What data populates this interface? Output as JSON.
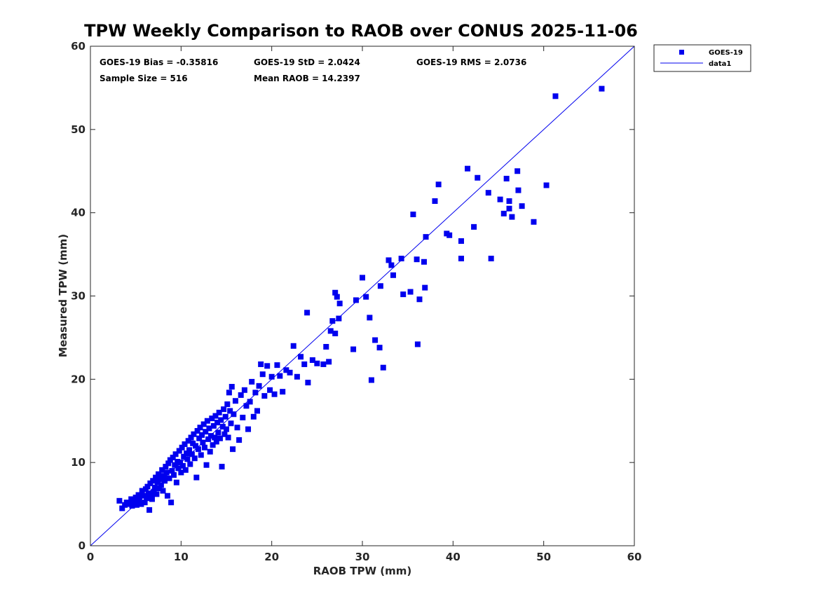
{
  "chart_data": {
    "type": "scatter",
    "title": "TPW Weekly Comparison to RAOB over CONUS 2025-11-06",
    "xlabel": "RAOB TPW (mm)",
    "ylabel": "Measured TPW (mm)",
    "xlim": [
      0,
      60
    ],
    "ylim": [
      0,
      60
    ],
    "xticks": [
      "0",
      "10",
      "20",
      "30",
      "40",
      "50",
      "60"
    ],
    "yticks": [
      "0",
      "10",
      "20",
      "30",
      "40",
      "50",
      "60"
    ],
    "grid": false,
    "legend_position": "outside-top-right",
    "annotations": {
      "bias": "GOES-19 Bias = -0.35816",
      "std": "GOES-19 StD = 2.0424",
      "rms": "GOES-19 RMS = 2.0736",
      "sample_size": "Sample Size = 516",
      "mean_raob": "Mean RAOB = 14.2397"
    },
    "series": [
      {
        "name": "GOES-19",
        "kind": "scatter",
        "marker": "square",
        "color": "#0000ee",
        "points": [
          [
            3.2,
            5.4
          ],
          [
            3.5,
            4.5
          ],
          [
            3.8,
            4.9
          ],
          [
            4.0,
            5.2
          ],
          [
            4.3,
            5.0
          ],
          [
            4.5,
            5.6
          ],
          [
            4.6,
            4.8
          ],
          [
            4.8,
            5.3
          ],
          [
            5.0,
            5.8
          ],
          [
            5.1,
            4.9
          ],
          [
            5.3,
            6.1
          ],
          [
            5.4,
            5.5
          ],
          [
            5.6,
            5.0
          ],
          [
            5.7,
            6.6
          ],
          [
            5.9,
            6.0
          ],
          [
            6.0,
            5.2
          ],
          [
            6.1,
            6.8
          ],
          [
            6.2,
            5.7
          ],
          [
            6.3,
            7.1
          ],
          [
            6.4,
            6.3
          ],
          [
            6.5,
            4.3
          ],
          [
            6.6,
            7.5
          ],
          [
            6.7,
            6.0
          ],
          [
            6.8,
            5.6
          ],
          [
            6.9,
            7.8
          ],
          [
            7.0,
            6.5
          ],
          [
            7.1,
            7.0
          ],
          [
            7.2,
            8.2
          ],
          [
            7.3,
            6.2
          ],
          [
            7.4,
            7.6
          ],
          [
            7.5,
            8.6
          ],
          [
            7.6,
            6.9
          ],
          [
            7.7,
            8.0
          ],
          [
            7.8,
            7.3
          ],
          [
            7.9,
            9.1
          ],
          [
            8.0,
            6.6
          ],
          [
            8.1,
            8.4
          ],
          [
            8.2,
            7.8
          ],
          [
            8.3,
            9.5
          ],
          [
            8.4,
            8.8
          ],
          [
            8.5,
            6.0
          ],
          [
            8.6,
            9.9
          ],
          [
            8.7,
            8.1
          ],
          [
            8.8,
            10.3
          ],
          [
            8.9,
            5.2
          ],
          [
            9.0,
            9.0
          ],
          [
            9.1,
            10.6
          ],
          [
            9.2,
            8.5
          ],
          [
            9.3,
            9.7
          ],
          [
            9.4,
            11.0
          ],
          [
            9.5,
            7.6
          ],
          [
            9.6,
            10.1
          ],
          [
            9.7,
            9.3
          ],
          [
            9.8,
            11.4
          ],
          [
            9.9,
            10.0
          ],
          [
            10.0,
            8.8
          ],
          [
            10.1,
            11.8
          ],
          [
            10.2,
            9.6
          ],
          [
            10.3,
            10.7
          ],
          [
            10.4,
            12.2
          ],
          [
            10.5,
            9.1
          ],
          [
            10.6,
            11.1
          ],
          [
            10.7,
            10.4
          ],
          [
            10.8,
            12.6
          ],
          [
            10.9,
            11.5
          ],
          [
            11.0,
            9.8
          ],
          [
            11.1,
            13.0
          ],
          [
            11.2,
            11.0
          ],
          [
            11.3,
            12.3
          ],
          [
            11.4,
            13.4
          ],
          [
            11.5,
            10.5
          ],
          [
            11.6,
            12.0
          ],
          [
            11.7,
            8.2
          ],
          [
            11.8,
            13.8
          ],
          [
            11.9,
            11.6
          ],
          [
            12.0,
            12.9
          ],
          [
            12.1,
            14.2
          ],
          [
            12.2,
            10.9
          ],
          [
            12.3,
            13.3
          ],
          [
            12.4,
            12.4
          ],
          [
            12.5,
            14.6
          ],
          [
            12.6,
            11.8
          ],
          [
            12.7,
            13.7
          ],
          [
            12.8,
            9.7
          ],
          [
            12.9,
            15.0
          ],
          [
            13.0,
            12.8
          ],
          [
            13.1,
            14.1
          ],
          [
            13.2,
            11.3
          ],
          [
            13.3,
            13.2
          ],
          [
            13.4,
            15.3
          ],
          [
            13.5,
            12.1
          ],
          [
            13.6,
            14.4
          ],
          [
            13.7,
            13.0
          ],
          [
            13.8,
            15.6
          ],
          [
            13.9,
            12.5
          ],
          [
            14.0,
            14.8
          ],
          [
            14.1,
            13.6
          ],
          [
            14.2,
            16.0
          ],
          [
            14.3,
            12.9
          ],
          [
            14.4,
            15.1
          ],
          [
            14.5,
            9.5
          ],
          [
            14.6,
            14.3
          ],
          [
            14.7,
            16.4
          ],
          [
            14.8,
            13.4
          ],
          [
            14.9,
            15.5
          ],
          [
            15.0,
            14.0
          ],
          [
            15.1,
            17.0
          ],
          [
            15.2,
            13.0
          ],
          [
            15.3,
            18.4
          ],
          [
            15.4,
            16.2
          ],
          [
            15.5,
            14.7
          ],
          [
            15.6,
            19.1
          ],
          [
            15.7,
            11.6
          ],
          [
            15.8,
            15.8
          ],
          [
            16.0,
            17.4
          ],
          [
            16.2,
            14.2
          ],
          [
            16.4,
            12.7
          ],
          [
            16.6,
            18.1
          ],
          [
            16.8,
            15.4
          ],
          [
            17.0,
            18.7
          ],
          [
            17.2,
            16.8
          ],
          [
            17.4,
            14.0
          ],
          [
            17.6,
            17.3
          ],
          [
            17.8,
            19.7
          ],
          [
            18.0,
            15.5
          ],
          [
            18.2,
            18.4
          ],
          [
            18.4,
            16.2
          ],
          [
            18.6,
            19.2
          ],
          [
            18.8,
            21.8
          ],
          [
            19.0,
            20.6
          ],
          [
            19.2,
            18.0
          ],
          [
            19.5,
            21.6
          ],
          [
            19.8,
            18.7
          ],
          [
            20.0,
            20.3
          ],
          [
            20.3,
            18.2
          ],
          [
            20.6,
            21.7
          ],
          [
            20.9,
            20.4
          ],
          [
            21.2,
            18.5
          ],
          [
            21.6,
            21.1
          ],
          [
            22.0,
            20.8
          ],
          [
            22.4,
            24.0
          ],
          [
            22.8,
            20.3
          ],
          [
            23.2,
            22.7
          ],
          [
            23.6,
            21.8
          ],
          [
            23.9,
            28.0
          ],
          [
            24.0,
            19.6
          ],
          [
            24.5,
            22.3
          ],
          [
            25.0,
            21.9
          ],
          [
            25.7,
            21.8
          ],
          [
            26.0,
            23.9
          ],
          [
            26.3,
            22.1
          ],
          [
            26.5,
            25.8
          ],
          [
            26.7,
            27.0
          ],
          [
            27.0,
            25.5
          ],
          [
            27.0,
            30.4
          ],
          [
            27.2,
            29.9
          ],
          [
            27.4,
            27.3
          ],
          [
            27.5,
            29.1
          ],
          [
            29.0,
            23.6
          ],
          [
            29.3,
            29.5
          ],
          [
            30.0,
            32.2
          ],
          [
            30.4,
            29.9
          ],
          [
            30.8,
            27.4
          ],
          [
            31.0,
            19.9
          ],
          [
            31.4,
            24.7
          ],
          [
            31.9,
            23.8
          ],
          [
            32.0,
            31.2
          ],
          [
            32.3,
            21.4
          ],
          [
            32.9,
            34.3
          ],
          [
            33.2,
            33.7
          ],
          [
            33.4,
            32.5
          ],
          [
            34.3,
            34.5
          ],
          [
            34.5,
            30.2
          ],
          [
            35.3,
            30.5
          ],
          [
            35.6,
            39.8
          ],
          [
            36.0,
            34.4
          ],
          [
            36.1,
            24.2
          ],
          [
            36.3,
            29.6
          ],
          [
            36.8,
            34.1
          ],
          [
            36.9,
            31.0
          ],
          [
            37.0,
            37.1
          ],
          [
            38.0,
            41.4
          ],
          [
            38.4,
            43.4
          ],
          [
            39.3,
            37.5
          ],
          [
            39.6,
            37.3
          ],
          [
            40.9,
            36.6
          ],
          [
            40.9,
            34.5
          ],
          [
            41.6,
            45.3
          ],
          [
            42.3,
            38.3
          ],
          [
            42.7,
            44.2
          ],
          [
            43.9,
            42.4
          ],
          [
            44.2,
            34.5
          ],
          [
            45.2,
            41.6
          ],
          [
            45.6,
            39.9
          ],
          [
            45.9,
            44.1
          ],
          [
            46.2,
            41.4
          ],
          [
            46.2,
            40.5
          ],
          [
            46.5,
            39.5
          ],
          [
            47.1,
            45.0
          ],
          [
            47.2,
            42.7
          ],
          [
            47.6,
            40.8
          ],
          [
            48.9,
            38.9
          ],
          [
            50.3,
            43.3
          ],
          [
            51.3,
            54.0
          ],
          [
            56.4,
            54.9
          ]
        ]
      },
      {
        "name": "data1",
        "kind": "line",
        "color": "#0000ee",
        "x": [
          0,
          60
        ],
        "y": [
          0,
          60
        ]
      }
    ]
  }
}
